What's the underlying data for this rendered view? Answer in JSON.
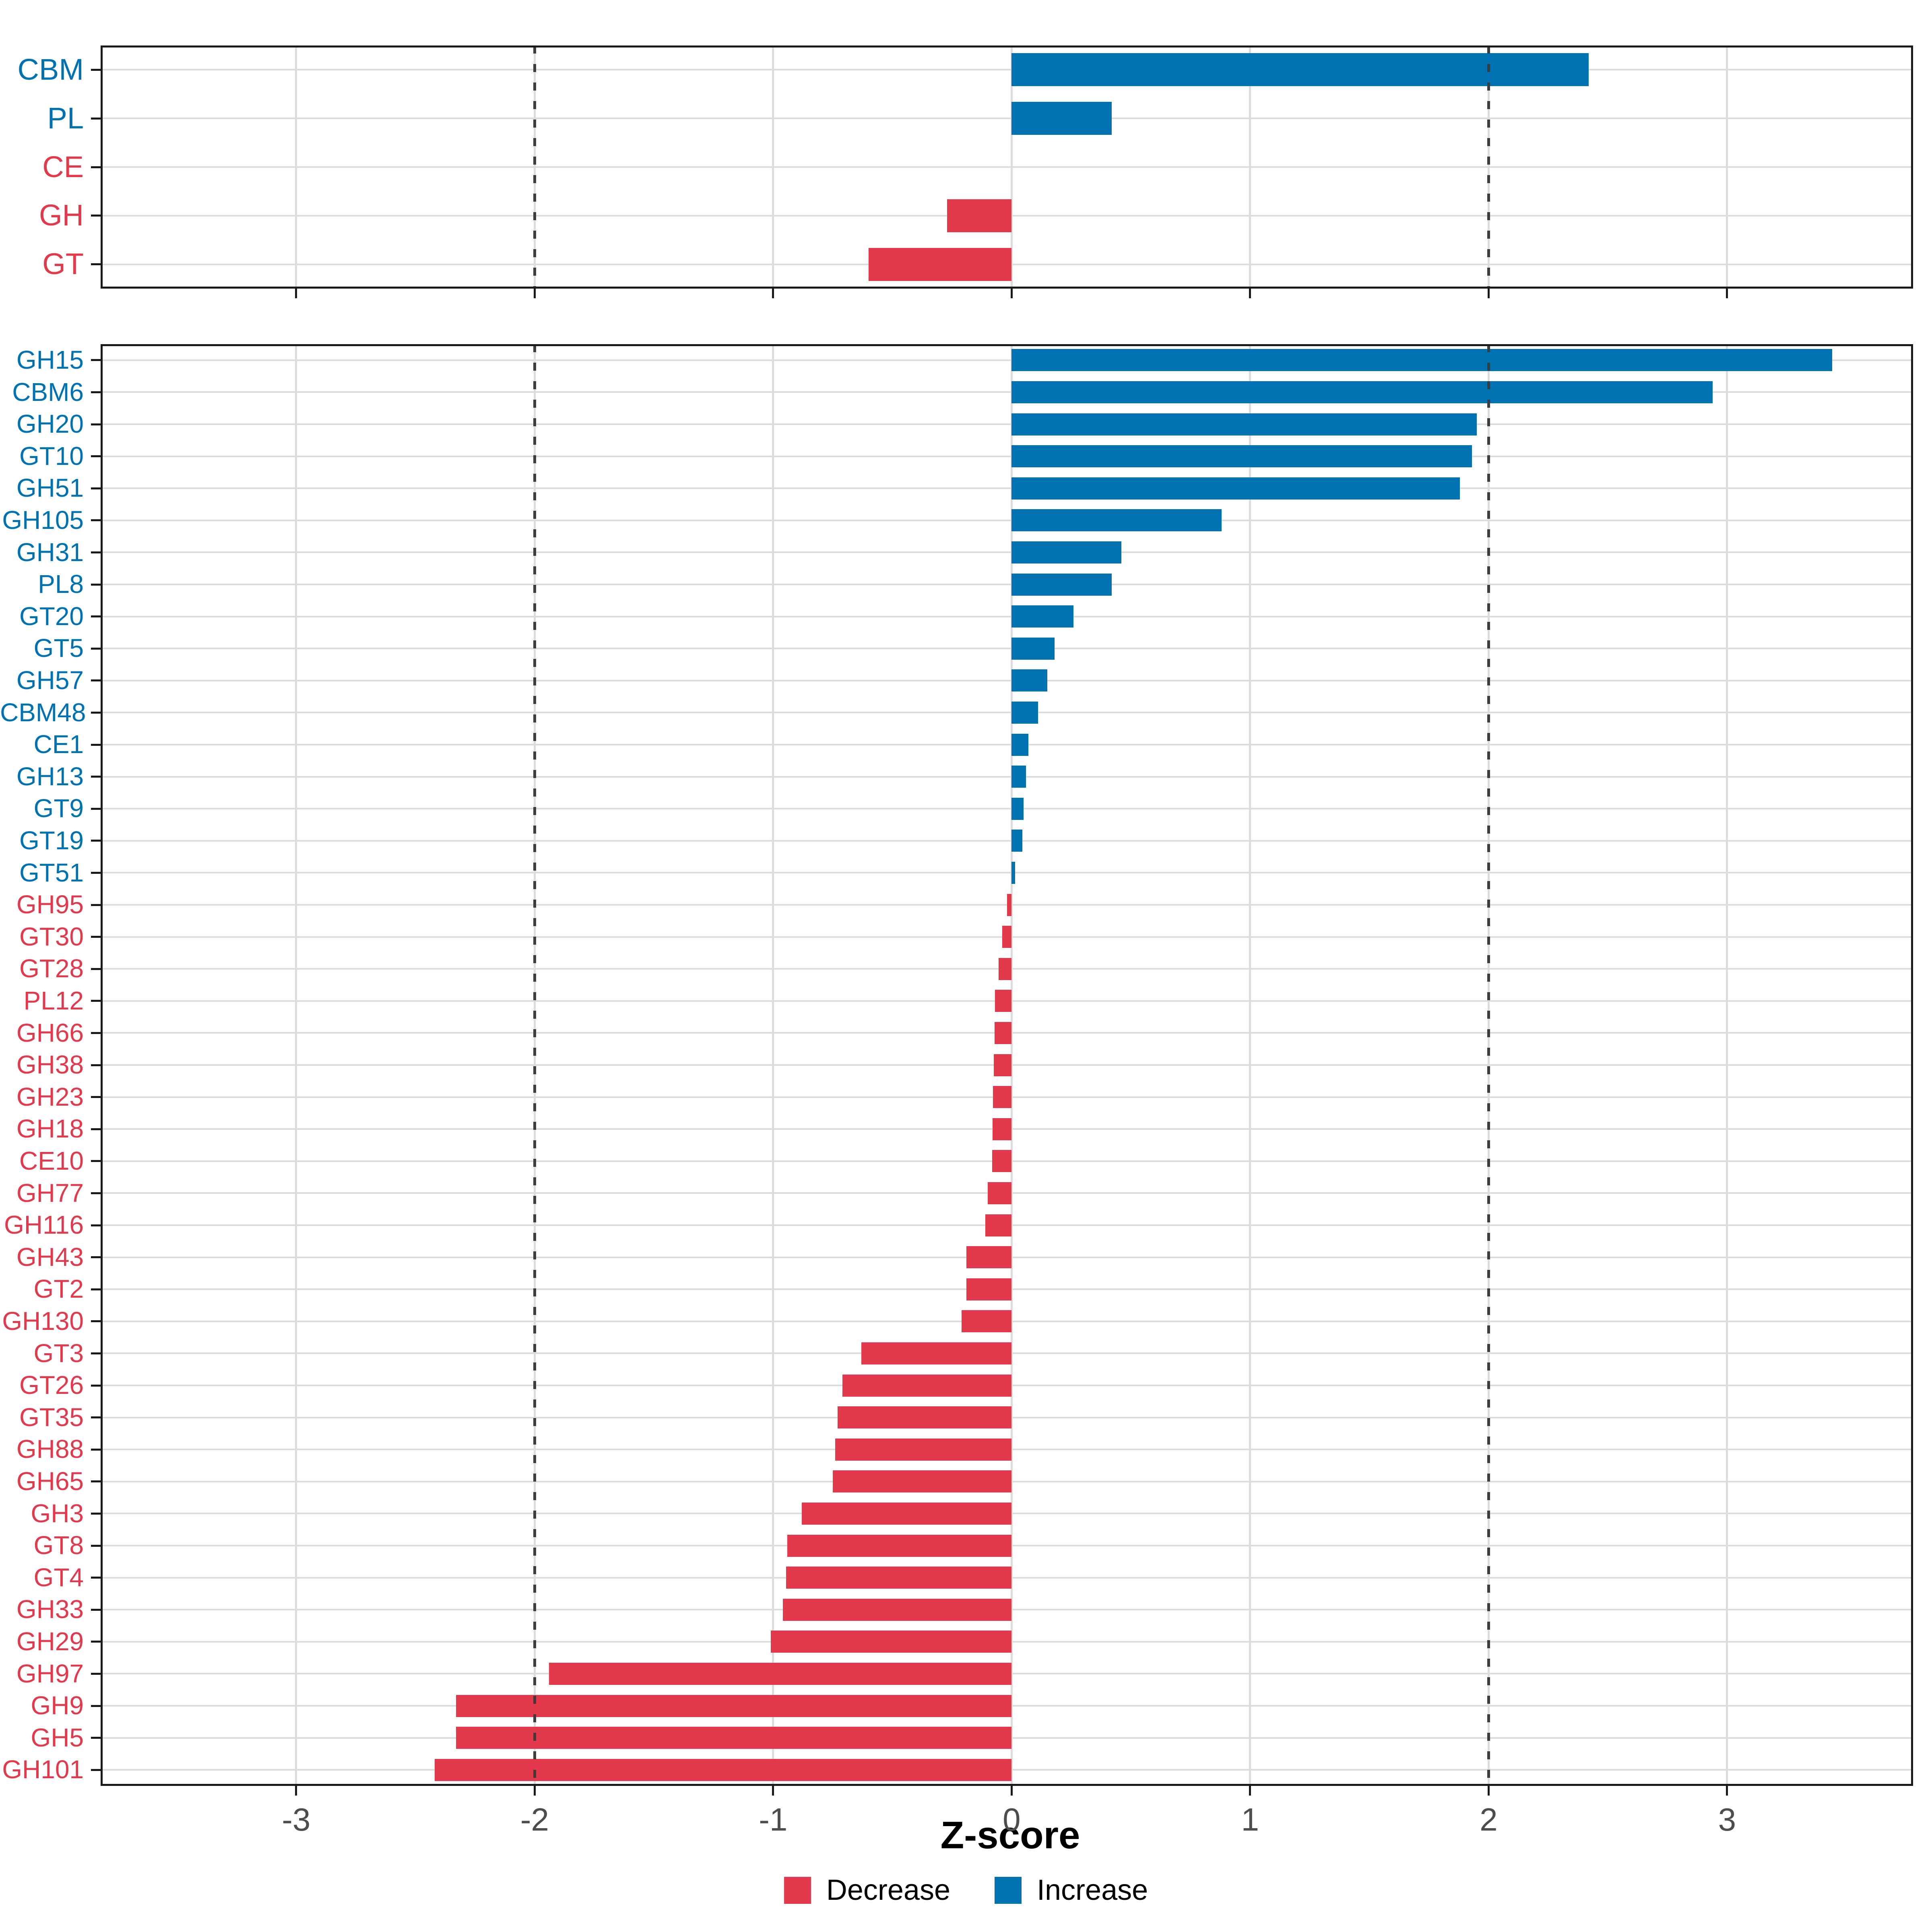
{
  "colors": {
    "increase": "#0072b2",
    "decrease": "#e2394d",
    "grid": "#dcdcdc",
    "dashed_line": "#3d3d3d",
    "panel_border": "#1a1a1a",
    "tick_label": "#4d4d4d",
    "axis_title": "#000000"
  },
  "axis": {
    "title": "Z-score",
    "tick_values": [
      -3,
      -2,
      -1,
      0,
      1,
      2,
      3
    ],
    "tick_labels": [
      "-3",
      "-2",
      "-1",
      "0",
      "1",
      "2",
      "3"
    ],
    "range": [
      -3.82,
      3.78
    ],
    "dashed_at": [
      -2,
      2
    ]
  },
  "legend": {
    "items": [
      {
        "label": "Decrease",
        "color_key": "decrease"
      },
      {
        "label": "Increase",
        "color_key": "increase"
      }
    ]
  },
  "chart_data": [
    {
      "type": "bar",
      "orientation": "horizontal",
      "panel": "enzyme-class",
      "title": "",
      "xlabel": "Z-score",
      "xlim": [
        -3.82,
        3.78
      ],
      "grid": true,
      "categories": [
        "CBM",
        "PL",
        "CE",
        "GH",
        "GT"
      ],
      "values": [
        2.42,
        0.42,
        0.0,
        -0.27,
        -0.6
      ],
      "directions": [
        "increase",
        "increase",
        "decrease",
        "decrease",
        "decrease"
      ]
    },
    {
      "type": "bar",
      "orientation": "horizontal",
      "panel": "enzyme-family",
      "title": "",
      "xlabel": "Z-score",
      "xlim": [
        -3.82,
        3.78
      ],
      "grid": true,
      "categories": [
        "GH15",
        "CBM6",
        "GH20",
        "GT10",
        "GH51",
        "GH105",
        "GH31",
        "PL8",
        "GT20",
        "GT5",
        "GH57",
        "CBM48",
        "CE1",
        "GH13",
        "GT9",
        "GT19",
        "GT51",
        "GH95",
        "GT30",
        "GT28",
        "PL12",
        "GH66",
        "GH38",
        "GH23",
        "GH18",
        "CE10",
        "GH77",
        "GH116",
        "GH43",
        "GT2",
        "GH130",
        "GT3",
        "GT26",
        "GT35",
        "GH88",
        "GH65",
        "GH3",
        "GT8",
        "GT4",
        "GH33",
        "GH29",
        "GH97",
        "GH9",
        "GH5",
        "GH101"
      ],
      "values": [
        3.44,
        2.94,
        1.95,
        1.93,
        1.88,
        0.88,
        0.46,
        0.42,
        0.26,
        0.18,
        0.15,
        0.11,
        0.07,
        0.06,
        0.05,
        0.045,
        0.015,
        -0.02,
        -0.04,
        -0.055,
        -0.07,
        -0.072,
        -0.075,
        -0.078,
        -0.08,
        -0.082,
        -0.1,
        -0.11,
        -0.19,
        -0.19,
        -0.21,
        -0.63,
        -0.71,
        -0.73,
        -0.74,
        -0.75,
        -0.88,
        -0.94,
        -0.945,
        -0.96,
        -1.01,
        -1.94,
        -2.33,
        -2.33,
        -2.42
      ],
      "directions": [
        "increase",
        "increase",
        "increase",
        "increase",
        "increase",
        "increase",
        "increase",
        "increase",
        "increase",
        "increase",
        "increase",
        "increase",
        "increase",
        "increase",
        "increase",
        "increase",
        "increase",
        "decrease",
        "decrease",
        "decrease",
        "decrease",
        "decrease",
        "decrease",
        "decrease",
        "decrease",
        "decrease",
        "decrease",
        "decrease",
        "decrease",
        "decrease",
        "decrease",
        "decrease",
        "decrease",
        "decrease",
        "decrease",
        "decrease",
        "decrease",
        "decrease",
        "decrease",
        "decrease",
        "decrease",
        "decrease",
        "decrease",
        "decrease",
        "decrease"
      ]
    }
  ]
}
